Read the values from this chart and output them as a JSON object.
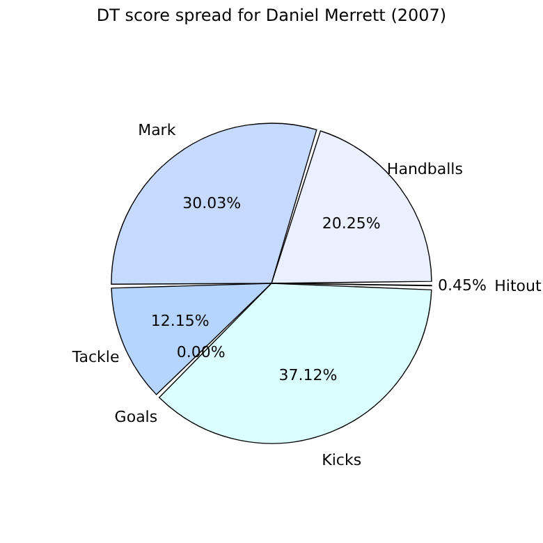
{
  "chart_data": {
    "type": "pie",
    "title": "DT score spread for Daniel Merrett (2007)",
    "categories": [
      "Handballs",
      "Mark",
      "Tackle",
      "Goals",
      "Kicks",
      "Hitout"
    ],
    "values": [
      20.25,
      30.03,
      12.15,
      0.0,
      37.12,
      0.45
    ],
    "colors": [
      "#eaf0ff",
      "#c6d9ff",
      "#b5d5ff",
      "#a8c8ff",
      "#dbffff",
      "#f5f5ff"
    ],
    "value_labels": [
      "20.25%",
      "30.03%",
      "12.15%",
      "0.00%",
      "37.12%",
      "0.45%"
    ]
  }
}
